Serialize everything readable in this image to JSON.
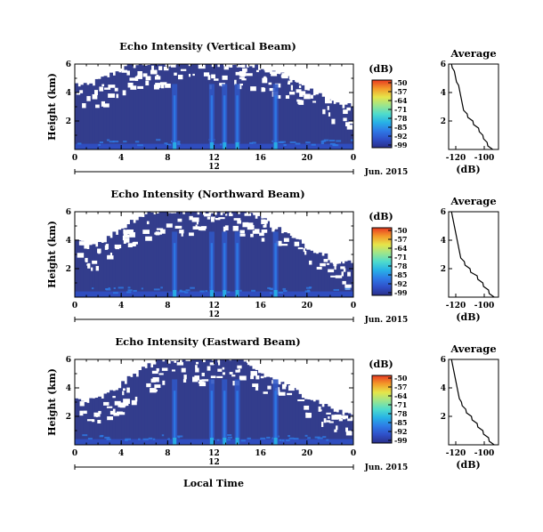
{
  "figure": {
    "date_label": "Jun. 2015",
    "time_axis_label": "Local Time",
    "day_label": "12",
    "colors": {
      "background_floor": "#333d8c",
      "colorbar": [
        "#2a2f8a",
        "#2f50c8",
        "#2e7ae6",
        "#27b2e6",
        "#4fdccc",
        "#9ce58c",
        "#e6e54a",
        "#f39a2a",
        "#e83a22"
      ]
    }
  },
  "chart_data": [
    {
      "type": "heatmap",
      "title": "Echo Intensity (Vertical Beam)",
      "xlabel": "",
      "ylabel": "Height (km)",
      "xlim": [
        0,
        24
      ],
      "ylim": [
        0,
        6
      ],
      "xticks": [
        "0",
        "4",
        "8",
        "12",
        "16",
        "20",
        "0"
      ],
      "yticks": [
        "2",
        "4",
        "6"
      ],
      "colorbar": {
        "label": "(dB)",
        "ticks": [
          "-50",
          "-57",
          "-64",
          "-71",
          "-78",
          "-85",
          "-92",
          "-99"
        ]
      },
      "top_of_echo_km_by_hour": [
        4.6,
        4.4,
        4.8,
        5.2,
        5.6,
        5.9,
        6.0,
        6.0,
        6.0,
        6.0,
        6.0,
        6.0,
        6.0,
        6.0,
        6.0,
        6.0,
        5.8,
        5.4,
        5.2,
        4.8,
        4.2,
        3.8,
        3.4,
        3.0
      ],
      "convective_cells_hour": [
        8.6,
        11.8,
        12.9,
        14.0,
        17.3
      ],
      "average_profile": {
        "title": "Average",
        "xlabel": "(dB)",
        "ylabel": "",
        "xlim": [
          -125,
          -90
        ],
        "ylim": [
          0,
          6
        ],
        "xticks": [
          "-120",
          "-100"
        ],
        "yticks": [
          "2",
          "4",
          "6"
        ],
        "points": [
          [
            -123,
            6.0
          ],
          [
            -121,
            5.5
          ],
          [
            -120,
            5.0
          ],
          [
            -118,
            4.5
          ],
          [
            -117,
            4.0
          ],
          [
            -116,
            3.5
          ],
          [
            -115,
            3.0
          ],
          [
            -112,
            2.5
          ],
          [
            -108,
            2.0
          ],
          [
            -104,
            1.5
          ],
          [
            -101,
            1.0
          ],
          [
            -98,
            0.5
          ],
          [
            -94,
            0.0
          ]
        ]
      }
    },
    {
      "type": "heatmap",
      "title": "Echo Intensity (Northward Beam)",
      "xlabel": "",
      "ylabel": "Height (km)",
      "xlim": [
        0,
        24
      ],
      "ylim": [
        0,
        6
      ],
      "xticks": [
        "0",
        "4",
        "8",
        "12",
        "16",
        "20",
        "0"
      ],
      "yticks": [
        "2",
        "4",
        "6"
      ],
      "colorbar": {
        "label": "(dB)",
        "ticks": [
          "-50",
          "-57",
          "-64",
          "-71",
          "-78",
          "-85",
          "-92",
          "-99"
        ]
      },
      "top_of_echo_km_by_hour": [
        4.0,
        3.6,
        3.8,
        4.2,
        4.8,
        5.4,
        5.8,
        6.0,
        6.0,
        6.0,
        6.0,
        6.0,
        6.0,
        6.0,
        6.0,
        6.0,
        5.6,
        5.0,
        4.6,
        4.0,
        3.6,
        3.2,
        2.8,
        2.4
      ],
      "convective_cells_hour": [
        8.6,
        11.8,
        12.9,
        14.0,
        17.3
      ],
      "average_profile": {
        "title": "Average",
        "xlabel": "(dB)",
        "ylabel": "",
        "xlim": [
          -125,
          -90
        ],
        "ylim": [
          0,
          6
        ],
        "xticks": [
          "-120",
          "-100"
        ],
        "yticks": [
          "2",
          "4",
          "6"
        ],
        "points": [
          [
            -123,
            6.0
          ],
          [
            -122,
            5.5
          ],
          [
            -121,
            5.0
          ],
          [
            -120,
            4.5
          ],
          [
            -119,
            4.0
          ],
          [
            -118,
            3.5
          ],
          [
            -117,
            3.0
          ],
          [
            -114,
            2.5
          ],
          [
            -110,
            2.0
          ],
          [
            -105,
            1.5
          ],
          [
            -101,
            1.0
          ],
          [
            -97,
            0.5
          ],
          [
            -93,
            0.0
          ]
        ]
      }
    },
    {
      "type": "heatmap",
      "title": "Echo Intensity (Eastward Beam)",
      "xlabel": "Local Time",
      "ylabel": "Height (km)",
      "xlim": [
        0,
        24
      ],
      "ylim": [
        0,
        6
      ],
      "xticks": [
        "0",
        "4",
        "8",
        "12",
        "16",
        "20",
        "0"
      ],
      "yticks": [
        "2",
        "4",
        "6"
      ],
      "colorbar": {
        "label": "(dB)",
        "ticks": [
          "-50",
          "-57",
          "-64",
          "-71",
          "-78",
          "-85",
          "-92",
          "-99"
        ]
      },
      "top_of_echo_km_by_hour": [
        3.2,
        3.0,
        3.2,
        3.6,
        4.2,
        4.8,
        5.4,
        5.8,
        6.0,
        6.0,
        6.0,
        6.0,
        6.0,
        6.0,
        6.0,
        5.6,
        5.0,
        4.6,
        4.2,
        3.8,
        3.4,
        3.0,
        2.6,
        2.2
      ],
      "convective_cells_hour": [
        8.6,
        11.8,
        12.9,
        14.0,
        17.3
      ],
      "average_profile": {
        "title": "Average",
        "xlabel": "(dB)",
        "ylabel": "",
        "xlim": [
          -125,
          -90
        ],
        "ylim": [
          0,
          6
        ],
        "xticks": [
          "-120",
          "-100"
        ],
        "yticks": [
          "2",
          "4",
          "6"
        ],
        "points": [
          [
            -123,
            6.0
          ],
          [
            -122,
            5.5
          ],
          [
            -121,
            5.0
          ],
          [
            -120,
            4.5
          ],
          [
            -119,
            4.0
          ],
          [
            -118,
            3.5
          ],
          [
            -116,
            3.0
          ],
          [
            -113,
            2.5
          ],
          [
            -109,
            2.0
          ],
          [
            -105,
            1.5
          ],
          [
            -101,
            1.0
          ],
          [
            -97,
            0.5
          ],
          [
            -93,
            0.0
          ]
        ]
      }
    }
  ]
}
